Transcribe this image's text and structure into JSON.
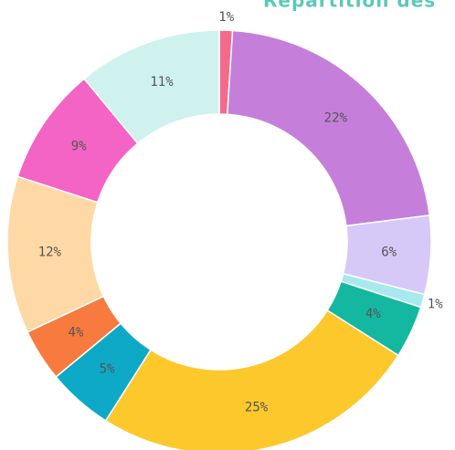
{
  "chart_data": {
    "type": "donut",
    "title": "Répartition des",
    "values": [
      1,
      22,
      6,
      1,
      4,
      25,
      5,
      4,
      12,
      9,
      11
    ],
    "value_labels": [
      "1%",
      "22%",
      "6%",
      "1%",
      "4%",
      "25%",
      "5%",
      "4%",
      "12%",
      "9%",
      "11%"
    ],
    "colors": [
      "#f46a8a",
      "#c57fdb",
      "#d6c8f7",
      "#a8e8ef",
      "#14b8a0",
      "#fcc82c",
      "#0ea9c7",
      "#f77b3e",
      "#fed9a6",
      "#f364c4",
      "#cff2ee"
    ]
  }
}
